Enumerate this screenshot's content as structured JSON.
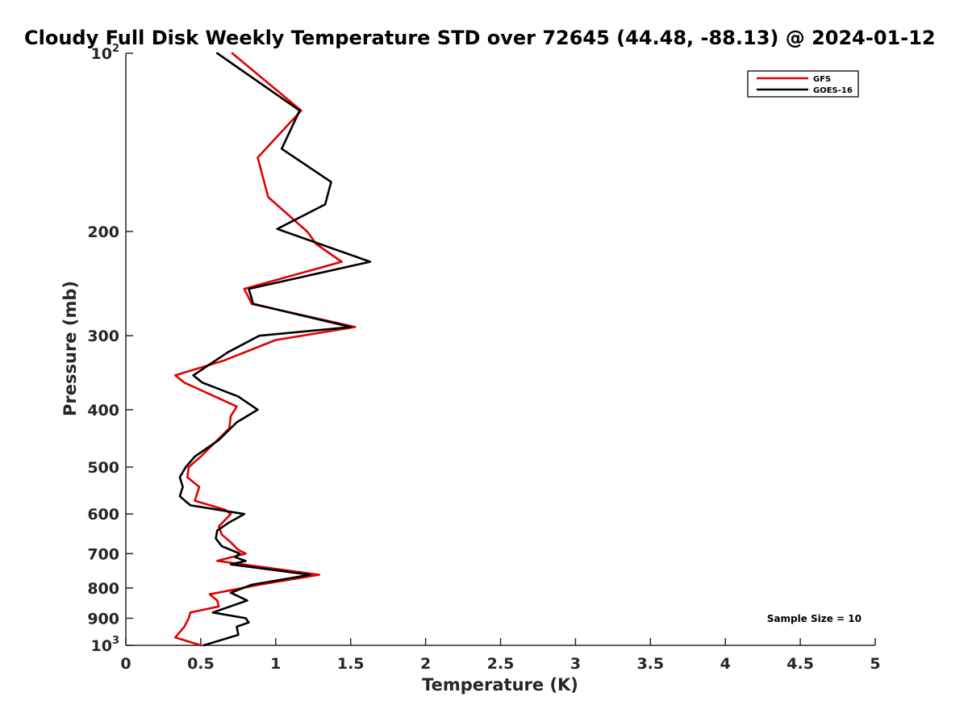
{
  "chart_data": {
    "type": "line",
    "title": "Cloudy Full Disk Weekly Temperature STD over 72645 (44.48, -88.13) @ 2024-01-12",
    "xlabel": "Temperature (K)",
    "ylabel": "Pressure (mb)",
    "xlim": [
      0,
      5
    ],
    "ylim": [
      100,
      1000
    ],
    "y_scale": "log",
    "y_reversed": true,
    "grid": false,
    "legend_position": "top-right",
    "x_ticks": [
      "0",
      "0.5",
      "1",
      "1.5",
      "2",
      "2.5",
      "3",
      "3.5",
      "4",
      "4.5",
      "5"
    ],
    "y_ticks": [
      {
        "value": 100,
        "base": "10",
        "exp": "2"
      },
      {
        "value": 200,
        "base": "200",
        "exp": ""
      },
      {
        "value": 300,
        "base": "300",
        "exp": ""
      },
      {
        "value": 400,
        "base": "400",
        "exp": ""
      },
      {
        "value": 500,
        "base": "500",
        "exp": ""
      },
      {
        "value": 600,
        "base": "600",
        "exp": ""
      },
      {
        "value": 700,
        "base": "700",
        "exp": ""
      },
      {
        "value": 800,
        "base": "800",
        "exp": ""
      },
      {
        "value": 900,
        "base": "900",
        "exp": ""
      },
      {
        "value": 1000,
        "base": "10",
        "exp": "3"
      }
    ],
    "annotation": "Sample Size = 10",
    "series": [
      {
        "name": "GFS",
        "color": "#e00000",
        "points": [
          [
            0.71,
            100
          ],
          [
            1.17,
            125
          ],
          [
            0.88,
            150
          ],
          [
            0.95,
            175
          ],
          [
            1.16,
            195
          ],
          [
            1.21,
            200
          ],
          [
            1.27,
            210
          ],
          [
            1.44,
            225
          ],
          [
            0.79,
            250
          ],
          [
            0.84,
            265
          ],
          [
            1.53,
            290
          ],
          [
            1.0,
            305
          ],
          [
            0.66,
            330
          ],
          [
            0.33,
            350
          ],
          [
            0.39,
            360
          ],
          [
            0.74,
            395
          ],
          [
            0.7,
            410
          ],
          [
            0.69,
            430
          ],
          [
            0.5,
            480
          ],
          [
            0.42,
            500
          ],
          [
            0.41,
            520
          ],
          [
            0.49,
            540
          ],
          [
            0.46,
            570
          ],
          [
            0.66,
            590
          ],
          [
            0.7,
            600
          ],
          [
            0.62,
            630
          ],
          [
            0.64,
            650
          ],
          [
            0.7,
            670
          ],
          [
            0.75,
            690
          ],
          [
            0.8,
            700
          ],
          [
            0.61,
            720
          ],
          [
            1.29,
            760
          ],
          [
            0.89,
            790
          ],
          [
            0.56,
            820
          ],
          [
            0.61,
            840
          ],
          [
            0.62,
            860
          ],
          [
            0.43,
            880
          ],
          [
            0.42,
            900
          ],
          [
            0.39,
            930
          ],
          [
            0.36,
            950
          ],
          [
            0.33,
            970
          ],
          [
            0.5,
            1000
          ]
        ]
      },
      {
        "name": "GOES-16",
        "color": "#000000",
        "points": [
          [
            0.61,
            100
          ],
          [
            1.16,
            125
          ],
          [
            1.04,
            145
          ],
          [
            1.37,
            165
          ],
          [
            1.33,
            180
          ],
          [
            1.01,
            198
          ],
          [
            1.63,
            225
          ],
          [
            0.82,
            250
          ],
          [
            0.85,
            265
          ],
          [
            1.5,
            290
          ],
          [
            0.89,
            300
          ],
          [
            0.68,
            320
          ],
          [
            0.45,
            350
          ],
          [
            0.51,
            360
          ],
          [
            0.75,
            380
          ],
          [
            0.88,
            400
          ],
          [
            0.74,
            420
          ],
          [
            0.62,
            450
          ],
          [
            0.46,
            480
          ],
          [
            0.4,
            500
          ],
          [
            0.36,
            520
          ],
          [
            0.38,
            540
          ],
          [
            0.36,
            560
          ],
          [
            0.43,
            580
          ],
          [
            0.79,
            600
          ],
          [
            0.69,
            620
          ],
          [
            0.61,
            640
          ],
          [
            0.6,
            660
          ],
          [
            0.64,
            680
          ],
          [
            0.76,
            700
          ],
          [
            0.73,
            710
          ],
          [
            0.8,
            720
          ],
          [
            0.7,
            730
          ],
          [
            1.23,
            760
          ],
          [
            0.84,
            790
          ],
          [
            0.7,
            815
          ],
          [
            0.81,
            840
          ],
          [
            0.58,
            880
          ],
          [
            0.8,
            900
          ],
          [
            0.82,
            915
          ],
          [
            0.74,
            930
          ],
          [
            0.75,
            960
          ],
          [
            0.52,
            1000
          ]
        ]
      }
    ]
  }
}
